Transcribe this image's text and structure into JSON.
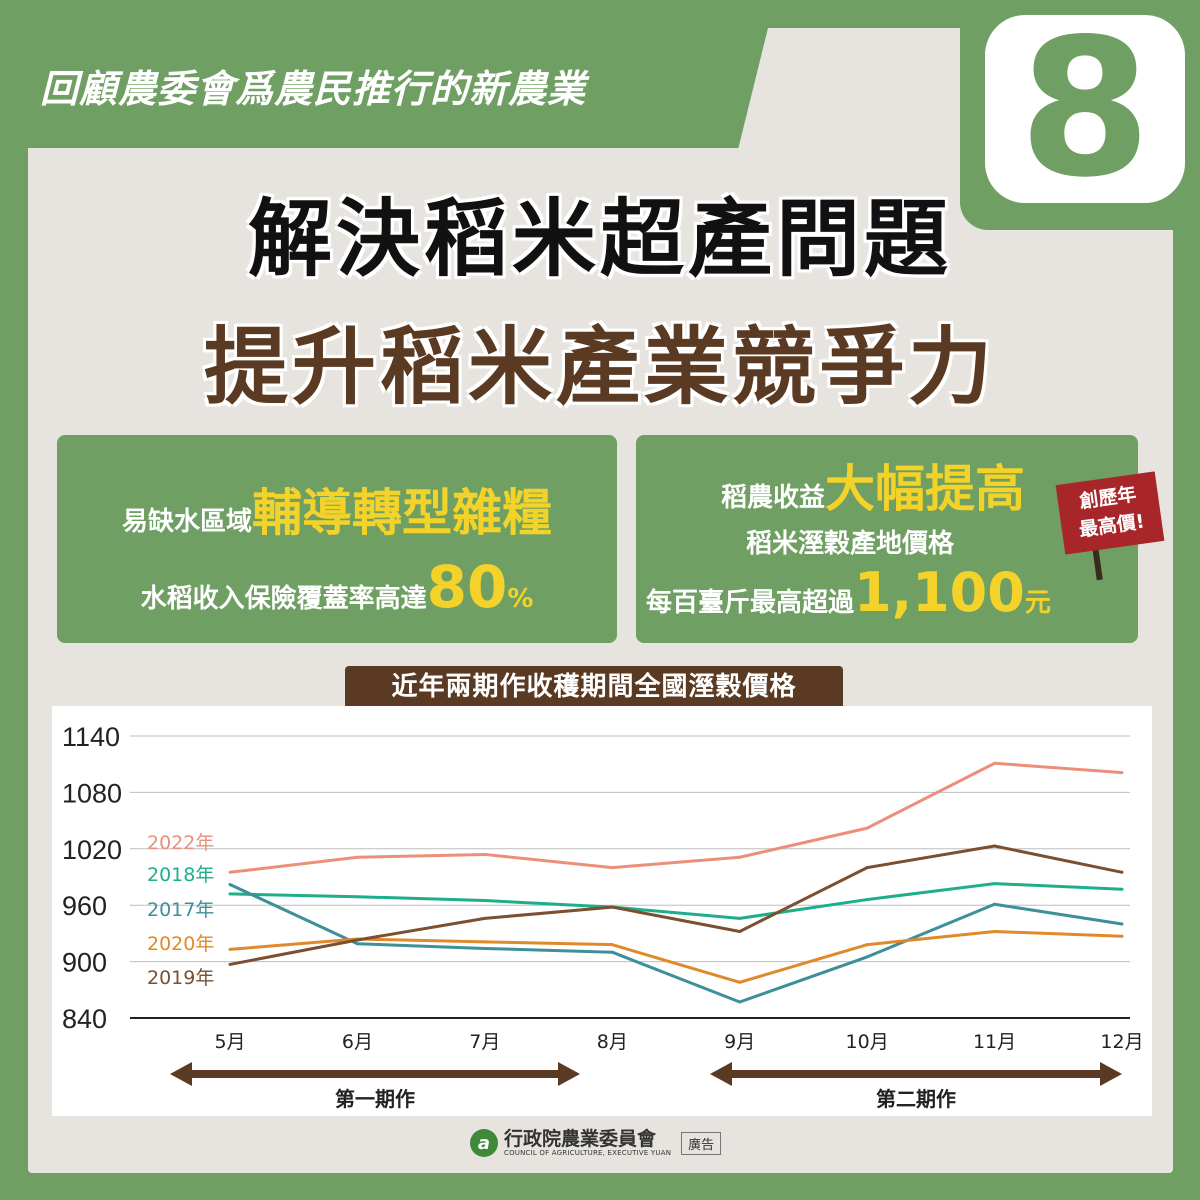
{
  "banner": {
    "text": "回顧農委會爲農民推行的新農業"
  },
  "badge": {
    "number": "8"
  },
  "titles": {
    "line1": "解決稻米超產問題",
    "line2": "提升稻米產業競爭力"
  },
  "card_left": {
    "line1_prefix": "易缺水區域",
    "line1_highlight": "輔導轉型雜糧",
    "line2_prefix": "水稻收入保險覆蓋率高達",
    "line2_highlight": "80",
    "line2_suffix": "%"
  },
  "card_right": {
    "line1_prefix": "稻農收益",
    "line1_highlight": "大幅提高",
    "line2": "稻米溼穀產地價格",
    "line3_prefix": "每百臺斤最高超過",
    "line3_highlight": "1,100",
    "line3_suffix": "元",
    "ribbon_line1": "創歷年",
    "ribbon_line2": "最高價!"
  },
  "colors": {
    "green": "#6f9f63",
    "brown": "#5a3a22",
    "highlight": "#f3d32a",
    "ribbon": "#a8262a"
  },
  "chart_data": {
    "type": "line",
    "title": "近年兩期作收穫期間全國溼穀價格",
    "categories": [
      "5月",
      "6月",
      "7月",
      "8月",
      "9月",
      "10月",
      "11月",
      "12月"
    ],
    "ylim": [
      840,
      1140
    ],
    "yticks": [
      840,
      900,
      960,
      1020,
      1080,
      1140
    ],
    "grid": true,
    "series": [
      {
        "name": "2022年",
        "color": "#ec8f7a",
        "values": [
          995,
          1011,
          1014,
          1000,
          1011,
          1042,
          1111,
          1101
        ]
      },
      {
        "name": "2018年",
        "color": "#1fae8a",
        "values": [
          972,
          969,
          965,
          958,
          946,
          966,
          983,
          977
        ]
      },
      {
        "name": "2017年",
        "color": "#3d8f98",
        "values": [
          982,
          919,
          914,
          910,
          857,
          905,
          961,
          940
        ]
      },
      {
        "name": "2020年",
        "color": "#e0892a",
        "values": [
          913,
          924,
          921,
          918,
          878,
          918,
          932,
          927
        ]
      },
      {
        "name": "2019年",
        "color": "#7a5030",
        "values": [
          897,
          923,
          946,
          958,
          932,
          1000,
          1023,
          995
        ]
      }
    ],
    "periods": [
      {
        "label": "第一期作"
      },
      {
        "label": "第二期作"
      }
    ]
  },
  "footer": {
    "org_name": "行政院農業委員會",
    "org_en": "COUNCIL OF AGRICULTURE, EXECUTIVE YUAN",
    "ad_tag": "廣告"
  }
}
